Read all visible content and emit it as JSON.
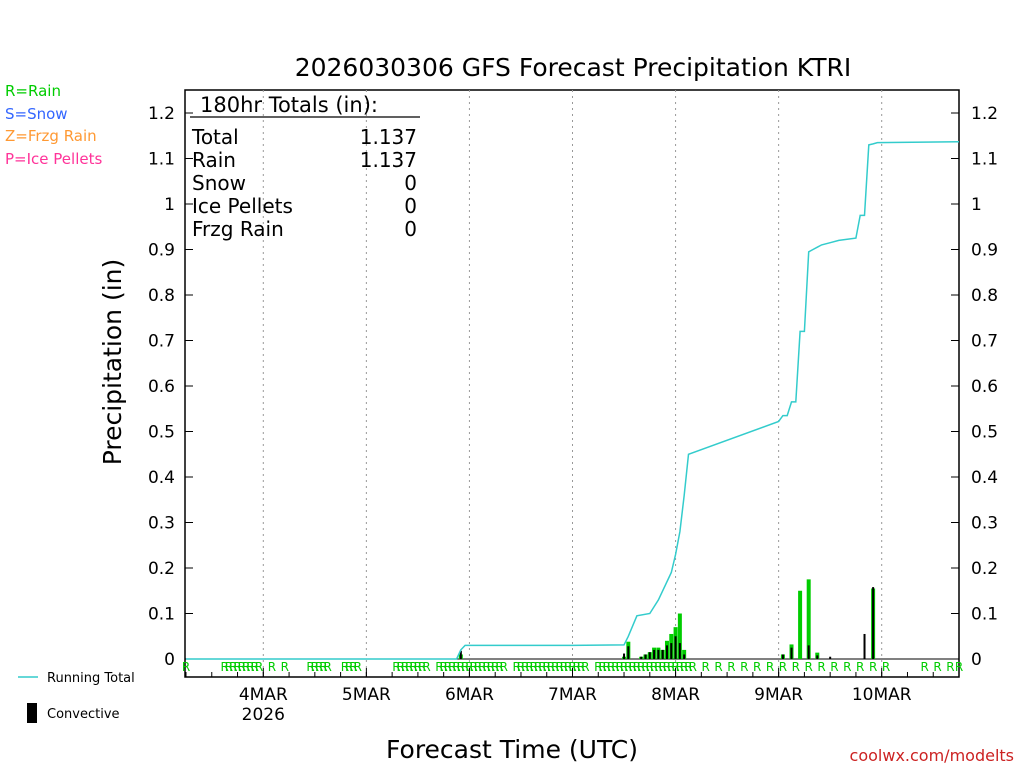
{
  "chart_data": {
    "type": "bar",
    "title": "2026030306 GFS Forecast Precipitation KTRI",
    "xlabel": "Forecast Time (UTC)",
    "ylabel": "Precipitation (in)",
    "ylim": [
      0,
      1.25
    ],
    "yticks": [
      0,
      0.1,
      0.2,
      0.3,
      0.4,
      0.5,
      0.6,
      0.7,
      0.8,
      0.9,
      1,
      1.1,
      1.2
    ],
    "ytick_labels": [
      "0",
      "0.1",
      "0.2",
      "0.3",
      "0.4",
      "0.5",
      "0.6",
      "0.7",
      "0.8",
      "0.9",
      "1",
      "1.1",
      "1.2"
    ],
    "x_unit": "forecast hour",
    "xlim": [
      0,
      180
    ],
    "xticks": [
      18,
      42,
      66,
      90,
      114,
      138,
      162
    ],
    "xtick_labels": [
      "4MAR",
      "5MAR",
      "6MAR",
      "7MAR",
      "8MAR",
      "9MAR",
      "10MAR"
    ],
    "x_sublabel": {
      "hour": 18,
      "text": "2026"
    },
    "grid": "vertical dotted at day boundaries",
    "legend_left": [
      {
        "label": "R=Rain",
        "color": "#00cc00"
      },
      {
        "label": "S=Snow",
        "color": "#3366ff"
      },
      {
        "label": "Z=Frzg Rain",
        "color": "#ff9933"
      },
      {
        "label": "P=Ice Pellets",
        "color": "#ff3399"
      }
    ],
    "legend_bottom": [
      {
        "label": "Running Total",
        "kind": "line",
        "color": "#33cccc"
      },
      {
        "label": "Convective",
        "kind": "bar",
        "color": "#000000"
      }
    ],
    "totals_box": {
      "title": "180hr Totals (in):",
      "rows": [
        {
          "label": "Total",
          "value": "1.137"
        },
        {
          "label": "Rain",
          "value": "1.137"
        },
        {
          "label": "Snow",
          "value": "0"
        },
        {
          "label": "Ice Pellets",
          "value": "0"
        },
        {
          "label": "Frzg Rain",
          "value": "0"
        }
      ]
    },
    "running_total": {
      "name": "Running Total",
      "color": "#33cccc",
      "x": [
        0,
        63,
        64,
        65,
        90,
        102,
        103,
        105,
        108,
        110,
        113,
        114,
        115,
        116,
        117,
        138,
        139,
        140,
        141,
        142,
        143,
        144,
        145,
        146,
        147,
        148,
        150,
        152,
        156,
        157,
        158,
        159,
        160,
        161,
        180
      ],
      "y": [
        0,
        0,
        0.02,
        0.03,
        0.03,
        0.031,
        0.05,
        0.095,
        0.1,
        0.13,
        0.19,
        0.23,
        0.28,
        0.36,
        0.45,
        0.522,
        0.535,
        0.535,
        0.565,
        0.565,
        0.72,
        0.72,
        0.895,
        0.9,
        0.905,
        0.91,
        0.915,
        0.92,
        0.925,
        0.975,
        0.975,
        1.13,
        1.132,
        1.135,
        1.137
      ]
    },
    "series": [
      {
        "name": "Rain",
        "color": "#00cc00",
        "x": [
          64,
          102,
          103,
          106,
          107,
          108,
          109,
          110,
          111,
          112,
          113,
          114,
          115,
          116,
          139,
          141,
          143,
          145,
          147,
          160
        ],
        "values": [
          0.01,
          0.005,
          0.038,
          0.005,
          0.01,
          0.015,
          0.025,
          0.025,
          0.02,
          0.04,
          0.055,
          0.07,
          0.1,
          0.02,
          0.01,
          0.032,
          0.15,
          0.175,
          0.014,
          0.155
        ]
      },
      {
        "name": "Convective",
        "color": "#000000",
        "x": [
          64,
          102,
          103,
          106,
          107,
          108,
          109,
          110,
          111,
          112,
          113,
          114,
          115,
          116,
          139,
          141,
          145,
          147,
          150,
          158,
          160
        ],
        "values": [
          0.018,
          0.012,
          0.028,
          0.005,
          0.01,
          0.015,
          0.02,
          0.02,
          0.02,
          0.03,
          0.035,
          0.05,
          0.035,
          0.01,
          0.01,
          0.025,
          0.03,
          0.008,
          0.005,
          0.055,
          0.158
        ]
      }
    ],
    "precip_type_markers": {
      "symbol": "R",
      "color": "#00cc00",
      "hours": [
        0,
        9,
        10,
        11,
        12,
        13,
        14,
        15,
        16,
        17,
        20,
        23,
        29,
        30,
        31,
        32,
        33,
        37,
        38,
        39,
        40,
        49,
        50,
        51,
        52,
        53,
        54,
        55,
        56,
        59,
        60,
        61,
        62,
        63,
        64,
        65,
        66,
        67,
        68,
        69,
        70,
        71,
        72,
        73,
        74,
        77,
        78,
        79,
        80,
        81,
        82,
        83,
        84,
        85,
        86,
        87,
        88,
        89,
        90,
        91,
        92,
        93,
        96,
        97,
        98,
        99,
        100,
        101,
        102,
        103,
        104,
        105,
        106,
        107,
        108,
        109,
        110,
        111,
        112,
        113,
        114,
        115,
        116,
        117,
        118,
        121,
        124,
        127,
        130,
        133,
        136,
        139,
        142,
        145,
        148,
        151,
        154,
        157,
        160,
        163,
        172,
        175,
        178,
        180
      ]
    }
  },
  "credit": "coolwx.com/modelts"
}
